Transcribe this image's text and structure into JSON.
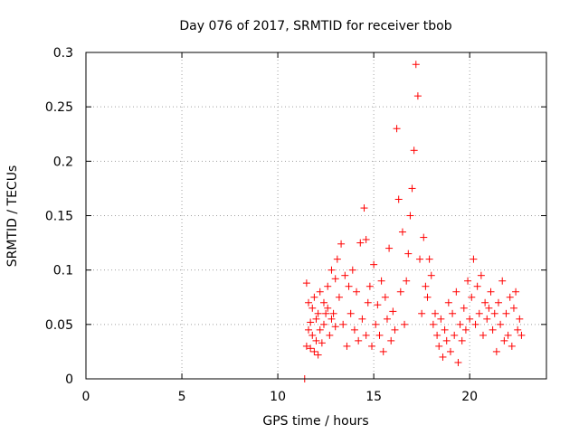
{
  "chart_data": {
    "type": "scatter",
    "title": "Day 076 of 2017, SRMTID for receiver tbob",
    "xlabel": "GPS time / hours",
    "ylabel": "SRMTID / TECUs",
    "xlim": [
      0,
      24
    ],
    "ylim": [
      0,
      0.3
    ],
    "xticks": [
      0,
      5,
      10,
      15,
      20
    ],
    "yticks": [
      0,
      0.05,
      0.1,
      0.15,
      0.2,
      0.25,
      0.3
    ],
    "grid": true,
    "marker": "+",
    "color": "#ff0000",
    "series": [
      {
        "name": "SRMTID",
        "x": [
          11.4,
          11.5,
          11.5,
          11.6,
          11.6,
          11.7,
          11.7,
          11.8,
          11.8,
          11.9,
          11.9,
          12.0,
          12.0,
          12.1,
          12.1,
          12.2,
          12.2,
          12.3,
          12.4,
          12.4,
          12.5,
          12.6,
          12.6,
          12.7,
          12.8,
          12.8,
          12.9,
          13.0,
          13.0,
          13.1,
          13.2,
          13.3,
          13.4,
          13.5,
          13.6,
          13.7,
          13.8,
          13.9,
          14.0,
          14.1,
          14.2,
          14.3,
          14.4,
          14.5,
          14.6,
          14.6,
          14.7,
          14.8,
          14.9,
          15.0,
          15.1,
          15.2,
          15.3,
          15.4,
          15.5,
          15.6,
          15.7,
          15.8,
          15.9,
          16.0,
          16.1,
          16.2,
          16.3,
          16.4,
          16.5,
          16.6,
          16.7,
          16.8,
          16.9,
          17.0,
          17.1,
          17.2,
          17.3,
          17.4,
          17.5,
          17.6,
          17.7,
          17.8,
          17.9,
          18.0,
          18.1,
          18.2,
          18.3,
          18.4,
          18.5,
          18.6,
          18.7,
          18.8,
          18.9,
          19.0,
          19.1,
          19.2,
          19.3,
          19.4,
          19.5,
          19.6,
          19.7,
          19.8,
          19.9,
          20.0,
          20.1,
          20.2,
          20.3,
          20.4,
          20.5,
          20.6,
          20.7,
          20.8,
          20.9,
          21.0,
          21.1,
          21.2,
          21.3,
          21.4,
          21.5,
          21.6,
          21.7,
          21.8,
          21.9,
          22.0,
          22.1,
          22.2,
          22.3,
          22.4,
          22.5,
          22.6,
          22.7
        ],
        "y": [
          0.0,
          0.088,
          0.03,
          0.07,
          0.045,
          0.052,
          0.028,
          0.065,
          0.04,
          0.075,
          0.025,
          0.055,
          0.035,
          0.06,
          0.022,
          0.045,
          0.08,
          0.033,
          0.07,
          0.05,
          0.06,
          0.065,
          0.085,
          0.04,
          0.1,
          0.055,
          0.06,
          0.092,
          0.048,
          0.11,
          0.075,
          0.124,
          0.05,
          0.095,
          0.03,
          0.085,
          0.06,
          0.1,
          0.045,
          0.08,
          0.035,
          0.125,
          0.055,
          0.157,
          0.04,
          0.128,
          0.07,
          0.085,
          0.03,
          0.105,
          0.05,
          0.068,
          0.04,
          0.09,
          0.025,
          0.075,
          0.055,
          0.12,
          0.035,
          0.062,
          0.045,
          0.23,
          0.165,
          0.08,
          0.135,
          0.05,
          0.09,
          0.115,
          0.15,
          0.175,
          0.21,
          0.289,
          0.26,
          0.11,
          0.06,
          0.13,
          0.085,
          0.075,
          0.11,
          0.095,
          0.05,
          0.06,
          0.04,
          0.03,
          0.055,
          0.02,
          0.045,
          0.035,
          0.07,
          0.025,
          0.06,
          0.04,
          0.08,
          0.015,
          0.05,
          0.035,
          0.065,
          0.045,
          0.09,
          0.055,
          0.075,
          0.11,
          0.05,
          0.085,
          0.06,
          0.095,
          0.04,
          0.07,
          0.055,
          0.065,
          0.08,
          0.045,
          0.06,
          0.025,
          0.07,
          0.05,
          0.09,
          0.035,
          0.06,
          0.04,
          0.075,
          0.03,
          0.065,
          0.08,
          0.045,
          0.055,
          0.04
        ]
      }
    ]
  }
}
